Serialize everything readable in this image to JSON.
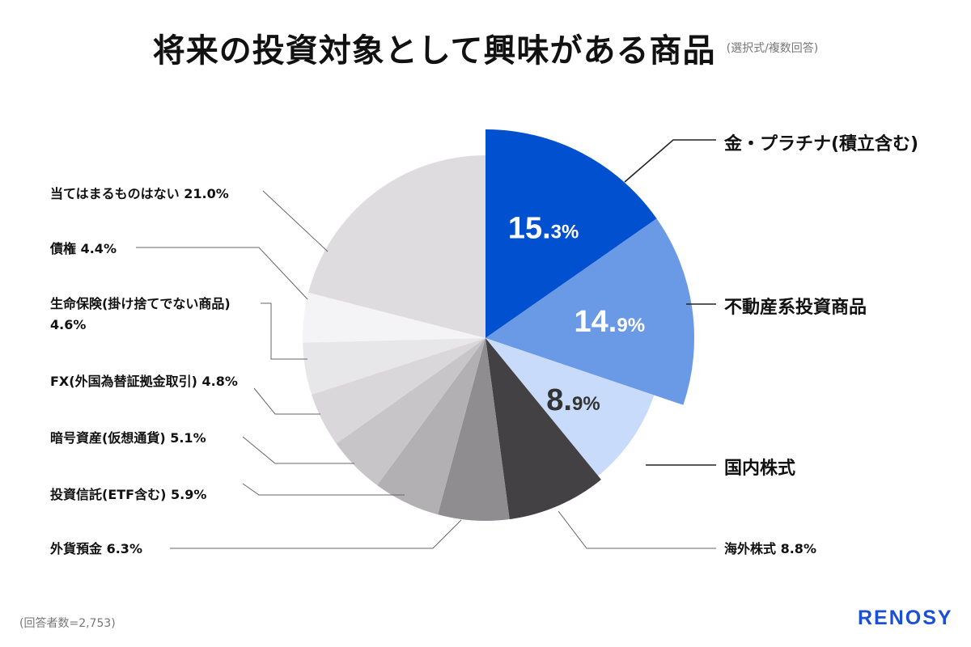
{
  "title": "将来の投資対象として興味がある商品",
  "subtitle": "(選択式/複数回答)",
  "footnote": "(回答者数=2,753)",
  "logo": "RENOSY",
  "chart_data": {
    "type": "pie",
    "title": "将来の投資対象として興味がある商品",
    "subtitle": "(選択式/複数回答)",
    "unit": "%",
    "slices": [
      {
        "label": "金・プラチナ(積立含む)",
        "value": 15.3,
        "display": "15.3%",
        "color": "#0050d0"
      },
      {
        "label": "不動産系投資商品",
        "value": 14.9,
        "display": "14.9%",
        "color": "#6a99e6"
      },
      {
        "label": "国内株式",
        "value": 8.9,
        "display": "8.9%",
        "color": "#c8dbfb"
      },
      {
        "label": "海外株式",
        "value": 8.8,
        "display": "8.8%",
        "color": "#444144"
      },
      {
        "label": "外貨預金",
        "value": 6.3,
        "display": "6.3%",
        "color": "#8f8d8f"
      },
      {
        "label": "投資信託(ETF含む)",
        "value": 5.9,
        "display": "5.9%",
        "color": "#b2b0b2"
      },
      {
        "label": "暗号資産(仮想通貨)",
        "value": 5.1,
        "display": "5.1%",
        "color": "#c7c5c8"
      },
      {
        "label": "FX(外国為替証拠金取引)",
        "value": 4.8,
        "display": "4.8%",
        "color": "#d9d7da"
      },
      {
        "label": "生命保険(掛け捨てでない商品)",
        "value": 4.6,
        "display": "4.6%",
        "color": "#e7e6e8"
      },
      {
        "label": "債権",
        "value": 4.4,
        "display": "4.4%",
        "color": "#f4f3f5"
      },
      {
        "label": "当てはまるものはない",
        "value": 21.0,
        "display": "21.0%",
        "color": "#dedcdf"
      }
    ]
  }
}
